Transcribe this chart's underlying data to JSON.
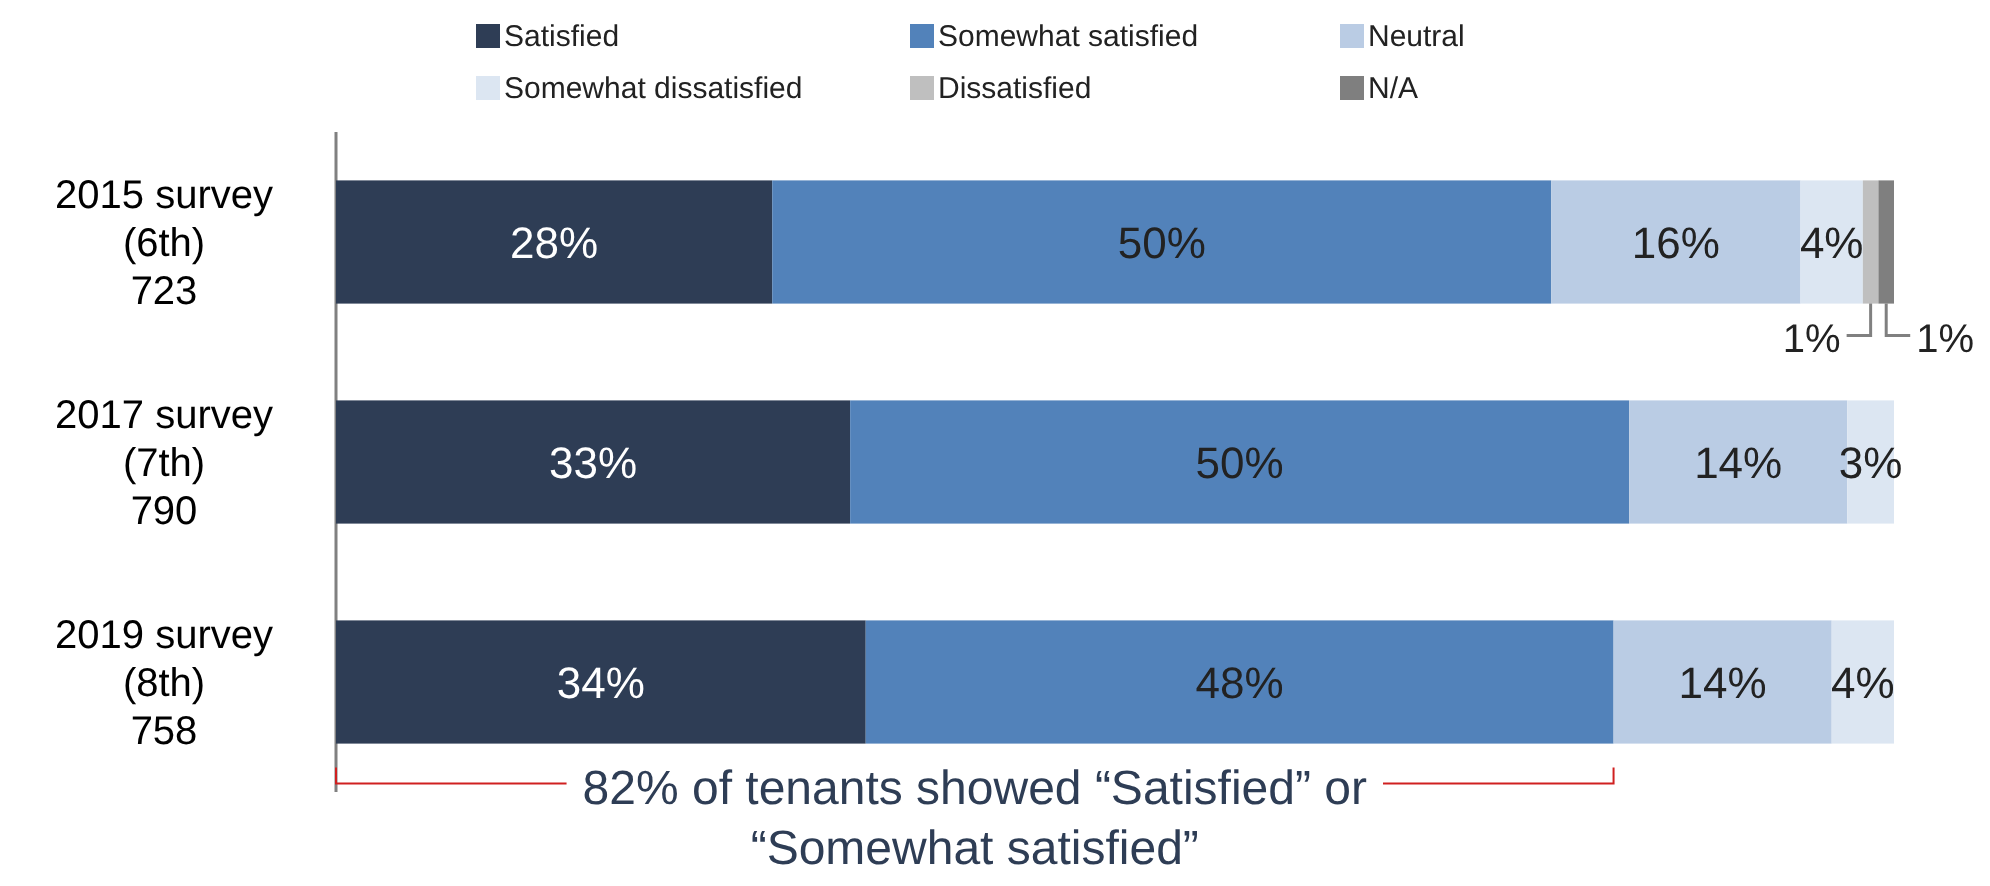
{
  "chart_data": {
    "type": "bar",
    "orientation": "horizontal",
    "stacked": true,
    "categories": [
      "2015 survey\n(6th)\n723",
      "2017 survey\n(7th)\n790",
      "2019 survey\n(8th)\n758"
    ],
    "xlim": [
      0,
      100
    ],
    "tick_labels": "y",
    "legend": "top",
    "series": [
      {
        "name": "Satisfied",
        "color": "#2e3d55",
        "values": [
          28,
          33,
          34
        ],
        "value_labels": [
          "28%",
          "33%",
          "34%"
        ]
      },
      {
        "name": "Somewhat satisfied",
        "color": "#5282ba",
        "values": [
          50,
          50,
          48
        ],
        "value_labels": [
          "50%",
          "50%",
          "48%"
        ]
      },
      {
        "name": "Neutral",
        "color": "#bacce4",
        "values": [
          16,
          14,
          14
        ],
        "value_labels": [
          "16%",
          "14%",
          "14%"
        ]
      },
      {
        "name": "Somewhat dissatisfied",
        "color": "#dce6f2",
        "values": [
          4,
          3,
          4
        ],
        "value_labels": [
          "4%",
          "3%",
          "4%"
        ]
      },
      {
        "name": "Dissatisfied",
        "color": "#bfbfbf",
        "values": [
          1,
          null,
          null
        ],
        "value_labels": [
          "1%",
          null,
          null
        ]
      },
      {
        "name": "N/A",
        "color": "#7f7f7f",
        "values": [
          1,
          null,
          null
        ],
        "value_labels": [
          "1%",
          null,
          null
        ]
      }
    ],
    "annotations": [
      "82% of tenants showed “Satisfied” or “Somewhat satisfied”"
    ]
  }
}
